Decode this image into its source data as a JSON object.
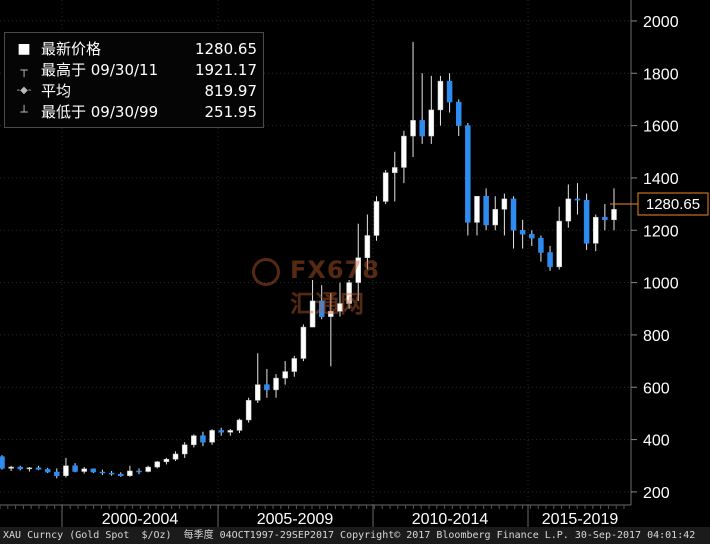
{
  "legend": {
    "items": [
      {
        "icon": "■",
        "name": "最新价格",
        "value": "1280.65"
      },
      {
        "icon": "┬",
        "name": "最高于 09/30/11",
        "value": "1921.17"
      },
      {
        "icon": "-◆-",
        "name": "平均",
        "value": "819.97"
      },
      {
        "icon": "┴",
        "name": "最低于 09/30/99",
        "value": "251.95"
      }
    ]
  },
  "last_price_label": "1280.65",
  "watermark": {
    "text": "FX678汇通网"
  },
  "footer": {
    "text": "XAU Curncy (Gold Spot  $/Oz)  每季度 04OCT1997-29SEP2017 Copyright© 2017 Bloomberg Finance L.P. 30-Sep-2017 04:01:42"
  },
  "colors": {
    "up": "#ffffff",
    "down": "#2e8cf0",
    "last": "#f08a1a",
    "grid": "#2a2a2a"
  },
  "chart_data": {
    "type": "candlestick",
    "frequency": "quarterly",
    "yticks": [
      200,
      400,
      600,
      800,
      1000,
      1200,
      1400,
      1600,
      1800,
      2000
    ],
    "ylim": [
      150,
      2080
    ],
    "x_period_labels": [
      "2000-2004",
      "2005-2009",
      "2010-2014",
      "2015-2019"
    ],
    "ohlc": [
      {
        "o": 335,
        "h": 340,
        "l": 285,
        "c": 290
      },
      {
        "o": 290,
        "h": 300,
        "l": 280,
        "c": 295
      },
      {
        "o": 295,
        "h": 300,
        "l": 282,
        "c": 288
      },
      {
        "o": 288,
        "h": 295,
        "l": 278,
        "c": 292
      },
      {
        "o": 292,
        "h": 300,
        "l": 283,
        "c": 286
      },
      {
        "o": 286,
        "h": 292,
        "l": 272,
        "c": 276
      },
      {
        "o": 276,
        "h": 290,
        "l": 252,
        "c": 262
      },
      {
        "o": 262,
        "h": 330,
        "l": 255,
        "c": 300
      },
      {
        "o": 300,
        "h": 310,
        "l": 275,
        "c": 278
      },
      {
        "o": 278,
        "h": 295,
        "l": 270,
        "c": 288
      },
      {
        "o": 288,
        "h": 290,
        "l": 272,
        "c": 276
      },
      {
        "o": 276,
        "h": 285,
        "l": 265,
        "c": 272
      },
      {
        "o": 272,
        "h": 280,
        "l": 262,
        "c": 268
      },
      {
        "o": 268,
        "h": 275,
        "l": 258,
        "c": 262
      },
      {
        "o": 262,
        "h": 300,
        "l": 258,
        "c": 280
      },
      {
        "o": 280,
        "h": 290,
        "l": 268,
        "c": 278
      },
      {
        "o": 278,
        "h": 300,
        "l": 275,
        "c": 295
      },
      {
        "o": 295,
        "h": 318,
        "l": 290,
        "c": 315
      },
      {
        "o": 315,
        "h": 330,
        "l": 305,
        "c": 325
      },
      {
        "o": 325,
        "h": 355,
        "l": 318,
        "c": 345
      },
      {
        "o": 345,
        "h": 390,
        "l": 330,
        "c": 380
      },
      {
        "o": 380,
        "h": 420,
        "l": 370,
        "c": 415
      },
      {
        "o": 415,
        "h": 430,
        "l": 375,
        "c": 390
      },
      {
        "o": 390,
        "h": 440,
        "l": 380,
        "c": 435
      },
      {
        "o": 435,
        "h": 445,
        "l": 415,
        "c": 428
      },
      {
        "o": 428,
        "h": 440,
        "l": 415,
        "c": 435
      },
      {
        "o": 435,
        "h": 480,
        "l": 425,
        "c": 475
      },
      {
        "o": 475,
        "h": 560,
        "l": 465,
        "c": 550
      },
      {
        "o": 550,
        "h": 730,
        "l": 540,
        "c": 610
      },
      {
        "o": 610,
        "h": 670,
        "l": 560,
        "c": 590
      },
      {
        "o": 590,
        "h": 650,
        "l": 560,
        "c": 635
      },
      {
        "o": 635,
        "h": 700,
        "l": 610,
        "c": 660
      },
      {
        "o": 660,
        "h": 720,
        "l": 640,
        "c": 710
      },
      {
        "o": 710,
        "h": 840,
        "l": 700,
        "c": 830
      },
      {
        "o": 830,
        "h": 1010,
        "l": 830,
        "c": 930
      },
      {
        "o": 930,
        "h": 990,
        "l": 860,
        "c": 870
      },
      {
        "o": 870,
        "h": 960,
        "l": 680,
        "c": 890
      },
      {
        "o": 890,
        "h": 1000,
        "l": 870,
        "c": 920
      },
      {
        "o": 920,
        "h": 1010,
        "l": 900,
        "c": 1000
      },
      {
        "o": 1000,
        "h": 1225,
        "l": 930,
        "c": 1095
      },
      {
        "o": 1095,
        "h": 1260,
        "l": 1050,
        "c": 1180
      },
      {
        "o": 1180,
        "h": 1330,
        "l": 1160,
        "c": 1310
      },
      {
        "o": 1310,
        "h": 1430,
        "l": 1300,
        "c": 1420
      },
      {
        "o": 1420,
        "h": 1500,
        "l": 1310,
        "c": 1440
      },
      {
        "o": 1440,
        "h": 1580,
        "l": 1380,
        "c": 1560
      },
      {
        "o": 1560,
        "h": 1920,
        "l": 1480,
        "c": 1620
      },
      {
        "o": 1620,
        "h": 1800,
        "l": 1530,
        "c": 1560
      },
      {
        "o": 1560,
        "h": 1790,
        "l": 1530,
        "c": 1660
      },
      {
        "o": 1660,
        "h": 1790,
        "l": 1600,
        "c": 1770
      },
      {
        "o": 1770,
        "h": 1800,
        "l": 1650,
        "c": 1690
      },
      {
        "o": 1690,
        "h": 1700,
        "l": 1560,
        "c": 1600
      },
      {
        "o": 1600,
        "h": 1610,
        "l": 1180,
        "c": 1230
      },
      {
        "o": 1230,
        "h": 1330,
        "l": 1180,
        "c": 1330
      },
      {
        "o": 1330,
        "h": 1360,
        "l": 1200,
        "c": 1220
      },
      {
        "o": 1220,
        "h": 1330,
        "l": 1200,
        "c": 1280
      },
      {
        "o": 1280,
        "h": 1340,
        "l": 1180,
        "c": 1320
      },
      {
        "o": 1320,
        "h": 1330,
        "l": 1130,
        "c": 1200
      },
      {
        "o": 1200,
        "h": 1240,
        "l": 1130,
        "c": 1185
      },
      {
        "o": 1185,
        "h": 1200,
        "l": 1140,
        "c": 1170
      },
      {
        "o": 1170,
        "h": 1180,
        "l": 1080,
        "c": 1115
      },
      {
        "o": 1115,
        "h": 1140,
        "l": 1045,
        "c": 1060
      },
      {
        "o": 1060,
        "h": 1290,
        "l": 1050,
        "c": 1235
      },
      {
        "o": 1235,
        "h": 1375,
        "l": 1210,
        "c": 1320
      },
      {
        "o": 1320,
        "h": 1380,
        "l": 1260,
        "c": 1315
      },
      {
        "o": 1315,
        "h": 1340,
        "l": 1125,
        "c": 1150
      },
      {
        "o": 1150,
        "h": 1260,
        "l": 1120,
        "c": 1250
      },
      {
        "o": 1250,
        "h": 1300,
        "l": 1200,
        "c": 1240
      },
      {
        "o": 1240,
        "h": 1360,
        "l": 1200,
        "c": 1280
      }
    ]
  }
}
